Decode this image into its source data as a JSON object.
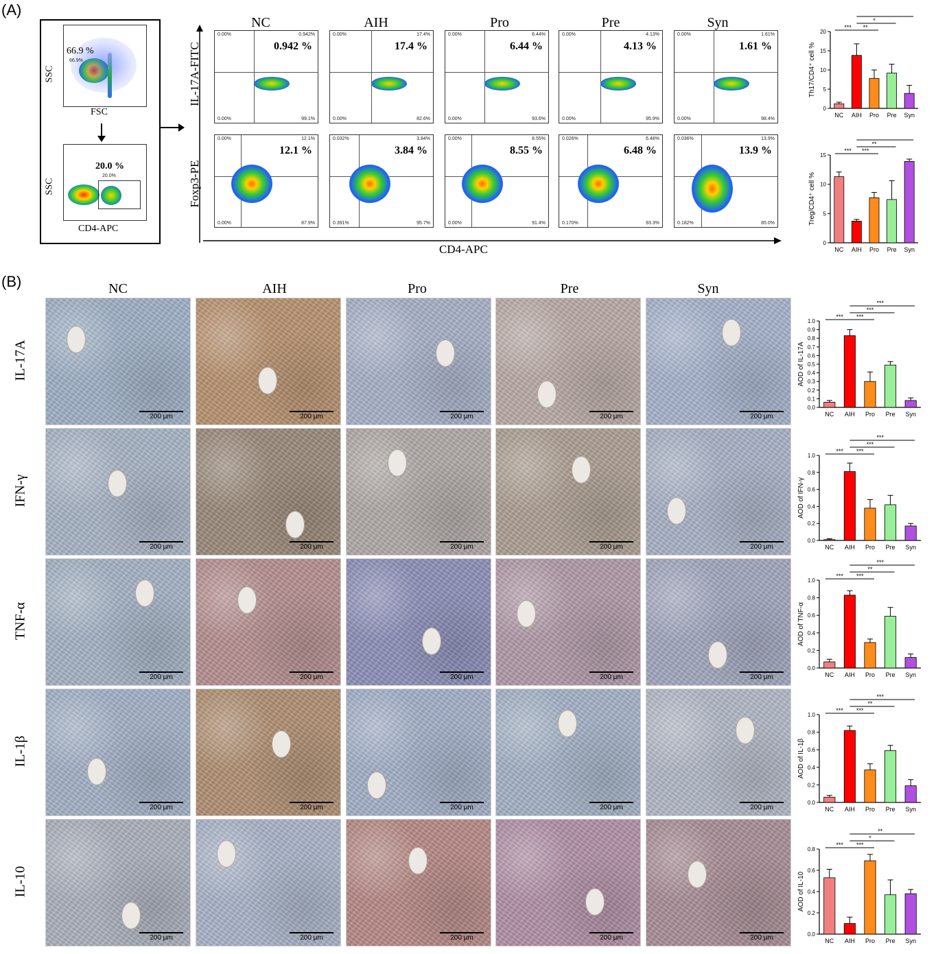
{
  "panel_a": {
    "label": "(A)",
    "gating": {
      "plot1": {
        "y_label": "SSC",
        "x_label": "FSC",
        "gate_pct": "66.9 %",
        "gate_pct_small": "66.9%"
      },
      "plot2": {
        "y_label": "SSC",
        "x_label": "CD4-APC",
        "gate_pct": "20.0 %",
        "gate_pct_small": "20.0%"
      }
    },
    "groups": [
      "NC",
      "AIH",
      "Pro",
      "Pre",
      "Syn"
    ],
    "row_labels": [
      "IL-17A-FITC",
      "Foxp3-PE"
    ],
    "x_axis_label": "CD4-APC",
    "il17_pct": [
      "0.942 %",
      "17.4 %",
      "6.44 %",
      "4.13 %",
      "1.61 %"
    ],
    "il17_quadrants": [
      {
        "ul": "0.00%",
        "ur": "0.942%",
        "ll": "0.00%",
        "lr": "99.1%"
      },
      {
        "ul": "0.00%",
        "ur": "17.4%",
        "ll": "0.00%",
        "lr": "82.6%"
      },
      {
        "ul": "0.00%",
        "ur": "6.44%",
        "ll": "0.00%",
        "lr": "93.6%"
      },
      {
        "ul": "0.00%",
        "ur": "4.13%",
        "ll": "0.00%",
        "lr": "95.9%"
      },
      {
        "ul": "0.00%",
        "ur": "1.61%",
        "ll": "0.00%",
        "lr": "98.4%"
      }
    ],
    "foxp3_pct": [
      "12.1 %",
      "3.84 %",
      "8.55 %",
      "6.48 %",
      "13.9 %"
    ],
    "foxp3_quadrants": [
      {
        "ul": "0.00%",
        "ur": "12.1%",
        "ll": "0.00%",
        "lr": "87.9%"
      },
      {
        "ul": "0.032%",
        "ur": "3.84%",
        "ll": "0.391%",
        "lr": "95.7%"
      },
      {
        "ul": "0.00%",
        "ur": "8.55%",
        "ll": "0.00%",
        "lr": "91.4%"
      },
      {
        "ul": "0.026%",
        "ur": "6.48%",
        "ll": "0.170%",
        "lr": "93.3%"
      },
      {
        "ul": "0.036%",
        "ur": "13.9%",
        "ll": "0.182%",
        "lr": "85.0%"
      }
    ],
    "tick_labels": [
      "10²",
      "10³",
      "10⁴",
      "10⁵"
    ]
  },
  "panel_b": {
    "label": "(B)",
    "groups": [
      "NC",
      "AIH",
      "Pro",
      "Pre",
      "Syn"
    ],
    "markers": [
      "IL-17A",
      "IFN-γ",
      "TNF-α",
      "IL-1β",
      "IL-10"
    ],
    "scale_bar": "200 μm"
  },
  "colors": {
    "NC": "#f08080",
    "AIH": "#ff0000",
    "Pro": "#ff8c1a",
    "Pre": "#99ee99",
    "Syn": "#b050e0"
  },
  "chart_data": [
    {
      "type": "bar",
      "ylabel": "Th17/CD4⁺ cell %",
      "categories": [
        "NC",
        "AIH",
        "Pro",
        "Pre",
        "Syn"
      ],
      "values": [
        1.2,
        13.8,
        7.8,
        9.2,
        3.9
      ],
      "errors": [
        0.4,
        3.0,
        2.2,
        2.3,
        2.1
      ],
      "ylim": [
        0,
        20
      ],
      "yticks": [
        "0",
        "5",
        "10",
        "15",
        "20"
      ],
      "sig": [
        {
          "from": "NC",
          "to": "AIH",
          "label": "***",
          "level": 0
        },
        {
          "from": "AIH",
          "to": "Pro",
          "label": "**",
          "level": 0
        },
        {
          "from": "AIH",
          "to": "Pre",
          "label": "*",
          "level": 1
        },
        {
          "from": "AIH",
          "to": "Syn",
          "label": "***",
          "level": 2
        }
      ]
    },
    {
      "type": "bar",
      "ylabel": "Treg/CD4⁺ cell %",
      "categories": [
        "NC",
        "AIH",
        "Pro",
        "Pre",
        "Syn"
      ],
      "values": [
        11.3,
        3.7,
        7.7,
        7.4,
        13.9
      ],
      "errors": [
        0.8,
        0.3,
        0.9,
        3.2,
        0.4
      ],
      "ylim": [
        0,
        15
      ],
      "yticks": [
        "0",
        "5",
        "10",
        "15"
      ],
      "sig": [
        {
          "from": "NC",
          "to": "AIH",
          "label": "***",
          "level": 0
        },
        {
          "from": "AIH",
          "to": "Pro",
          "label": "***",
          "level": 0
        },
        {
          "from": "AIH",
          "to": "Pre",
          "label": "**",
          "level": 1
        },
        {
          "from": "AIH",
          "to": "Syn",
          "label": "***",
          "level": 2
        }
      ]
    },
    {
      "type": "bar",
      "ylabel": "AOD of IL-17A",
      "categories": [
        "NC",
        "AIH",
        "Pro",
        "Pre",
        "Syn"
      ],
      "values": [
        0.06,
        0.83,
        0.3,
        0.49,
        0.08
      ],
      "errors": [
        0.02,
        0.07,
        0.11,
        0.04,
        0.03
      ],
      "ylim": [
        0,
        1.0
      ],
      "yticks": [
        "0.0",
        "0.1",
        "0.2",
        "0.3",
        "0.4",
        "0.5",
        "0.6",
        "0.7",
        "0.8",
        "0.9",
        "1.0"
      ],
      "sig": [
        {
          "from": "NC",
          "to": "AIH",
          "label": "***",
          "level": 0
        },
        {
          "from": "AIH",
          "to": "Pro",
          "label": "***",
          "level": 0
        },
        {
          "from": "AIH",
          "to": "Pre",
          "label": "***",
          "level": 1
        },
        {
          "from": "AIH",
          "to": "Syn",
          "label": "***",
          "level": 2
        }
      ]
    },
    {
      "type": "bar",
      "ylabel": "AOD of IFN-γ",
      "categories": [
        "NC",
        "AIH",
        "Pro",
        "Pre",
        "Syn"
      ],
      "values": [
        0.01,
        0.81,
        0.38,
        0.42,
        0.17
      ],
      "errors": [
        0.01,
        0.1,
        0.1,
        0.11,
        0.03
      ],
      "ylim": [
        0,
        1.0
      ],
      "yticks": [
        "0.0",
        "0.2",
        "0.4",
        "0.6",
        "0.8",
        "1.0"
      ],
      "sig": [
        {
          "from": "NC",
          "to": "AIH",
          "label": "***",
          "level": 0
        },
        {
          "from": "AIH",
          "to": "Pro",
          "label": "***",
          "level": 0
        },
        {
          "from": "AIH",
          "to": "Pre",
          "label": "***",
          "level": 1
        },
        {
          "from": "AIH",
          "to": "Syn",
          "label": "***",
          "level": 2
        }
      ]
    },
    {
      "type": "bar",
      "ylabel": "AOD of TNF-α",
      "categories": [
        "NC",
        "AIH",
        "Pro",
        "Pre",
        "Syn"
      ],
      "values": [
        0.07,
        0.83,
        0.29,
        0.59,
        0.12
      ],
      "errors": [
        0.03,
        0.05,
        0.04,
        0.1,
        0.04
      ],
      "ylim": [
        0,
        1.0
      ],
      "yticks": [
        "0.0",
        "0.2",
        "0.4",
        "0.6",
        "0.8",
        "1.0"
      ],
      "sig": [
        {
          "from": "NC",
          "to": "AIH",
          "label": "***",
          "level": 0
        },
        {
          "from": "AIH",
          "to": "Pro",
          "label": "***",
          "level": 0
        },
        {
          "from": "AIH",
          "to": "Pre",
          "label": "**",
          "level": 1
        },
        {
          "from": "AIH",
          "to": "Syn",
          "label": "***",
          "level": 2
        }
      ]
    },
    {
      "type": "bar",
      "ylabel": "AOD of IL-1β",
      "categories": [
        "NC",
        "AIH",
        "Pro",
        "Pre",
        "Syn"
      ],
      "values": [
        0.06,
        0.82,
        0.37,
        0.59,
        0.19
      ],
      "errors": [
        0.02,
        0.05,
        0.07,
        0.06,
        0.07
      ],
      "ylim": [
        0,
        1.0
      ],
      "yticks": [
        "0.0",
        "0.2",
        "0.4",
        "0.6",
        "0.8",
        "1.0"
      ],
      "sig": [
        {
          "from": "NC",
          "to": "AIH",
          "label": "***",
          "level": 0
        },
        {
          "from": "AIH",
          "to": "Pro",
          "label": "***",
          "level": 0
        },
        {
          "from": "AIH",
          "to": "Pre",
          "label": "**",
          "level": 1
        },
        {
          "from": "AIH",
          "to": "Syn",
          "label": "***",
          "level": 2
        }
      ]
    },
    {
      "type": "bar",
      "ylabel": "AOD of IL-10",
      "categories": [
        "NC",
        "AIH",
        "Pro",
        "Pre",
        "Syn"
      ],
      "values": [
        0.53,
        0.1,
        0.69,
        0.37,
        0.38
      ],
      "errors": [
        0.08,
        0.06,
        0.06,
        0.14,
        0.04
      ],
      "ylim": [
        0,
        0.8
      ],
      "yticks": [
        "0.0",
        "0.2",
        "0.4",
        "0.6",
        "0.8"
      ],
      "sig": [
        {
          "from": "NC",
          "to": "AIH",
          "label": "***",
          "level": 0
        },
        {
          "from": "AIH",
          "to": "Pro",
          "label": "***",
          "level": 0
        },
        {
          "from": "AIH",
          "to": "Pre",
          "label": "*",
          "level": 1
        },
        {
          "from": "AIH",
          "to": "Syn",
          "label": "**",
          "level": 2
        }
      ]
    }
  ]
}
